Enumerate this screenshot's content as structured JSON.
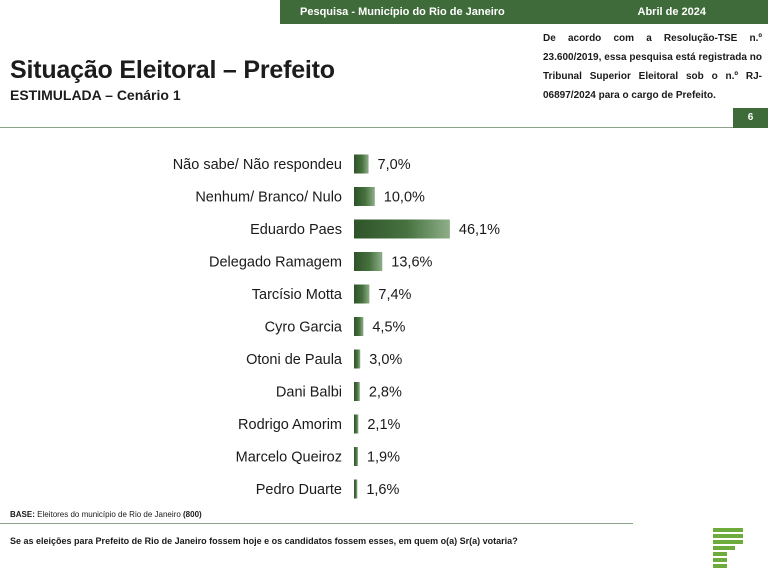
{
  "header": {
    "survey": "Pesquisa - Município do Rio de Janeiro",
    "date": "Abril de 2024"
  },
  "title": "Situação Eleitoral – Prefeito",
  "subtitle": "ESTIMULADA – Cenário 1",
  "registration_note": "De acordo com a Resolução-TSE n.º 23.600/2019, essa pesquisa está registrada no Tribunal Superior Eleitoral sob o n.º RJ-06897/2024 para o cargo de Prefeito.",
  "page_number": "6",
  "base": {
    "label": "BASE:",
    "text": "Eleitores do município de Rio de Janeiro",
    "count": "(800)"
  },
  "question": "Se as eleições para Prefeito de Rio de Janeiro fossem hoje e os candidatos fossem esses, em quem o(a) Sr(a) votaria?",
  "colors": {
    "brand_green": "#3f6a3a",
    "bar_dark": "#2e5329",
    "bar_light": "#8fae89"
  },
  "chart_data": {
    "type": "bar",
    "orientation": "horizontal",
    "categories": [
      "Não sabe/ Não respondeu",
      "Nenhum/ Branco/ Nulo",
      "Eduardo Paes",
      "Delegado Ramagem",
      "Tarcísio Motta",
      "Cyro Garcia",
      "Otoni de Paula",
      "Dani Balbi",
      "Rodrigo Amorim",
      "Marcelo Queiroz",
      "Pedro Duarte"
    ],
    "values": [
      7.0,
      10.0,
      46.1,
      13.6,
      7.4,
      4.5,
      3.0,
      2.8,
      2.1,
      1.9,
      1.6
    ],
    "value_labels": [
      "7,0%",
      "10,0%",
      "46,1%",
      "13,6%",
      "7,4%",
      "4,5%",
      "3,0%",
      "2,8%",
      "2,1%",
      "1,9%",
      "1,6%"
    ],
    "unit": "%",
    "xlim": [
      0,
      50
    ],
    "grid": false,
    "legend": "none"
  }
}
